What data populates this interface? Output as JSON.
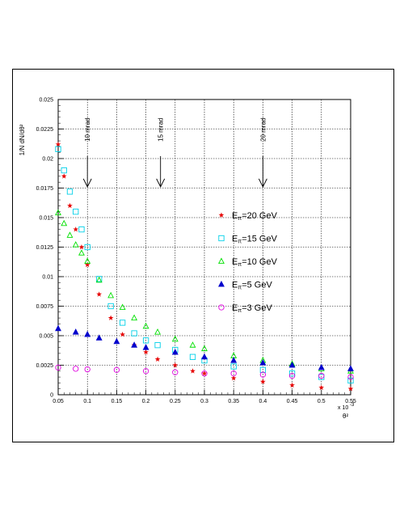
{
  "chart_data": {
    "type": "scatter",
    "ylabel": "1/N dN/dθ²",
    "xlabel": "θ²",
    "x_multiplier": "x 10",
    "x_multiplier_exp": "-3",
    "xlim": [
      0.05,
      0.55
    ],
    "ylim": [
      0,
      0.025
    ],
    "x_ticks": [
      "0.05",
      "0.1",
      "0.15",
      "0.2",
      "0.25",
      "0.3",
      "0.35",
      "0.4",
      "0.45",
      "0.5",
      "0.55"
    ],
    "y_ticks": [
      "0",
      "0.0025",
      "0.005",
      "0.0075",
      "0.01",
      "0.0125",
      "0.015",
      "0.0175",
      "0.02",
      "0.0225",
      "0.025"
    ],
    "grid": true,
    "legend_position": "center-right",
    "annotations": [
      {
        "text": "10 mrad",
        "x": 0.1
      },
      {
        "text": "15 mrad",
        "x": 0.225
      },
      {
        "text": "20 mrad",
        "x": 0.4
      }
    ],
    "series": [
      {
        "name": "Eπ=20 GeV",
        "label_sub": "π",
        "label_value": "=20 GeV",
        "marker": "star",
        "color": "#e60000",
        "x": [
          0.05,
          0.06,
          0.07,
          0.08,
          0.09,
          0.1,
          0.12,
          0.14,
          0.16,
          0.18,
          0.2,
          0.22,
          0.25,
          0.28,
          0.3,
          0.35,
          0.4,
          0.45,
          0.5,
          0.55
        ],
        "values": [
          0.0212,
          0.0185,
          0.016,
          0.014,
          0.0125,
          0.011,
          0.0085,
          0.0065,
          0.0051,
          0.0042,
          0.0036,
          0.003,
          0.0025,
          0.002,
          0.0018,
          0.0014,
          0.0011,
          0.0008,
          0.0006,
          0.0005
        ]
      },
      {
        "name": "Eπ=15 GeV",
        "label_sub": "π",
        "label_value": "=15 GeV",
        "marker": "open-square",
        "color": "#00d0e8",
        "x": [
          0.05,
          0.06,
          0.07,
          0.08,
          0.09,
          0.1,
          0.12,
          0.14,
          0.16,
          0.18,
          0.2,
          0.22,
          0.25,
          0.28,
          0.3,
          0.35,
          0.4,
          0.45,
          0.5,
          0.55
        ],
        "values": [
          0.0208,
          0.019,
          0.0172,
          0.0155,
          0.014,
          0.0125,
          0.0098,
          0.0075,
          0.0061,
          0.0052,
          0.0046,
          0.0042,
          0.0038,
          0.0032,
          0.0029,
          0.0024,
          0.0021,
          0.0018,
          0.0015,
          0.0012
        ]
      },
      {
        "name": "Eπ=10 GeV",
        "label_sub": "π",
        "label_value": "=10 GeV",
        "marker": "open-triangle",
        "color": "#00e000",
        "x": [
          0.05,
          0.06,
          0.07,
          0.08,
          0.09,
          0.1,
          0.12,
          0.14,
          0.16,
          0.18,
          0.2,
          0.22,
          0.25,
          0.28,
          0.3,
          0.35,
          0.4,
          0.45,
          0.5,
          0.55
        ],
        "values": [
          0.0154,
          0.0145,
          0.0135,
          0.0127,
          0.012,
          0.0113,
          0.0097,
          0.0084,
          0.0074,
          0.0065,
          0.0058,
          0.0053,
          0.0047,
          0.0042,
          0.0039,
          0.0033,
          0.0029,
          0.0026,
          0.0022,
          0.002
        ]
      },
      {
        "name": "Eπ=5 GeV",
        "label_sub": "π",
        "label_value": "=5 GeV",
        "marker": "filled-triangle",
        "color": "#0000cc",
        "x": [
          0.05,
          0.08,
          0.1,
          0.12,
          0.15,
          0.18,
          0.2,
          0.25,
          0.3,
          0.35,
          0.4,
          0.45,
          0.5,
          0.55
        ],
        "values": [
          0.0056,
          0.0053,
          0.0051,
          0.0048,
          0.0045,
          0.0042,
          0.004,
          0.0036,
          0.0032,
          0.0029,
          0.0027,
          0.0025,
          0.0023,
          0.0022
        ]
      },
      {
        "name": "Eπ=3 GeV",
        "label_sub": "π",
        "label_value": "=3 GeV",
        "marker": "open-circle",
        "color": "#e000e0",
        "x": [
          0.05,
          0.08,
          0.1,
          0.15,
          0.2,
          0.25,
          0.3,
          0.35,
          0.4,
          0.45,
          0.5,
          0.55
        ],
        "values": [
          0.0023,
          0.0022,
          0.00215,
          0.0021,
          0.002,
          0.0019,
          0.0018,
          0.0018,
          0.0017,
          0.0016,
          0.0016,
          0.0015
        ]
      }
    ]
  }
}
